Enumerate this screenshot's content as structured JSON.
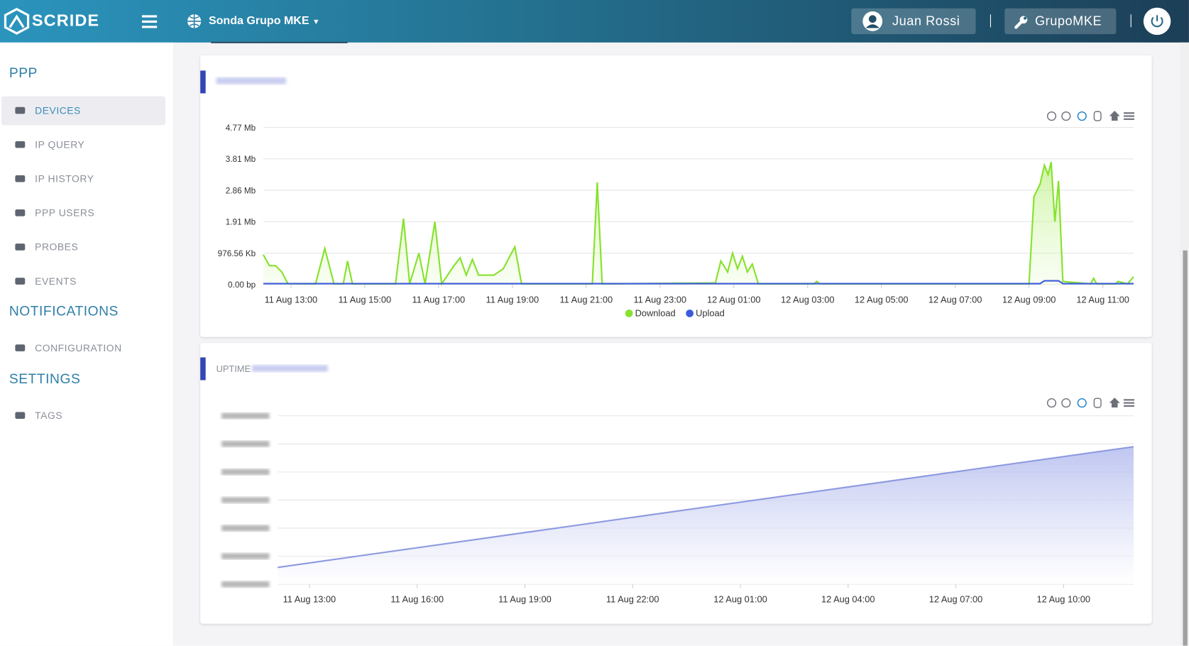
{
  "header": {
    "brand": "SCRIDE",
    "site": "Sonda Grupo MKE",
    "user": "Juan Rossi",
    "org": "GrupoMKE"
  },
  "sidebar": {
    "sections": [
      {
        "title": "PPP",
        "items": [
          "DEVICES",
          "IP QUERY",
          "IP HISTORY",
          "PPP USERS",
          "PROBES",
          "EVENTS"
        ]
      },
      {
        "title": "NOTIFICATIONS",
        "items": [
          "CONFIGURATION"
        ]
      },
      {
        "title": "SETTINGS",
        "items": [
          "TAGS"
        ]
      }
    ]
  },
  "chart_data": [
    {
      "type": "area",
      "x": [
        "11 Aug 12:15",
        "11 Aug 12:25",
        "11 Aug 12:35",
        "11 Aug 12:45",
        "11 Aug 12:55",
        "11 Aug 13:40",
        "11 Aug 13:55",
        "11 Aug 14:10",
        "11 Aug 14:25",
        "11 Aug 14:32",
        "11 Aug 14:40",
        "11 Aug 15:50",
        "11 Aug 16:03",
        "11 Aug 16:13",
        "11 Aug 16:28",
        "11 Aug 16:38",
        "11 Aug 16:54",
        "11 Aug 17:05",
        "11 Aug 17:25",
        "11 Aug 17:35",
        "11 Aug 17:45",
        "11 Aug 17:55",
        "11 Aug 18:05",
        "11 Aug 18:30",
        "11 Aug 18:45",
        "11 Aug 19:04",
        "11 Aug 19:15",
        "11 Aug 21:10",
        "11 Aug 21:18",
        "11 Aug 21:26",
        "12 Aug 00:30",
        "12 Aug 00:39",
        "12 Aug 00:50",
        "12 Aug 00:58",
        "12 Aug 01:06",
        "12 Aug 01:14",
        "12 Aug 01:22",
        "12 Aug 01:30",
        "12 Aug 01:40",
        "12 Aug 03:10",
        "12 Aug 03:15",
        "12 Aug 03:20",
        "12 Aug 09:00",
        "12 Aug 09:08",
        "12 Aug 09:18",
        "12 Aug 09:25",
        "12 Aug 09:31",
        "12 Aug 09:36",
        "12 Aug 09:42",
        "12 Aug 09:48",
        "12 Aug 09:55",
        "12 Aug 10:40",
        "12 Aug 10:45",
        "12 Aug 10:50",
        "12 Aug 11:20",
        "12 Aug 11:25",
        "12 Aug 11:40",
        "12 Aug 11:50"
      ],
      "xlim": [
        "11 Aug 12:15",
        "12 Aug 11:50"
      ],
      "xticks": [
        "11 Aug 13:00",
        "11 Aug 15:00",
        "11 Aug 17:00",
        "11 Aug 19:00",
        "11 Aug 21:00",
        "11 Aug 23:00",
        "12 Aug 01:00",
        "12 Aug 03:00",
        "12 Aug 05:00",
        "12 Aug 07:00",
        "12 Aug 09:00",
        "12 Aug 11:00"
      ],
      "ylim": [
        0,
        5000000
      ],
      "yticks": [
        {
          "value": 0,
          "label": "0.00 bp"
        },
        {
          "value": 1000000,
          "label": "976.56 Kb"
        },
        {
          "value": 2000000,
          "label": "1.91 Mb"
        },
        {
          "value": 3000000,
          "label": "2.86 Mb"
        },
        {
          "value": 4000000,
          "label": "3.81 Mb"
        },
        {
          "value": 5000000,
          "label": "4.77 Mb"
        }
      ],
      "grid": true,
      "legend": "bottom",
      "series": [
        {
          "name": "Download",
          "color": "#86e22c",
          "values": [
            950000,
            600000,
            600000,
            400000,
            30000,
            20000,
            1150000,
            20000,
            20000,
            750000,
            20000,
            20000,
            2100000,
            20000,
            1000000,
            20000,
            2000000,
            20000,
            600000,
            850000,
            300000,
            800000,
            300000,
            300000,
            500000,
            1200000,
            20000,
            20000,
            3250000,
            20000,
            50000,
            750000,
            400000,
            1000000,
            500000,
            900000,
            400000,
            650000,
            20000,
            20000,
            100000,
            20000,
            20000,
            2800000,
            3200000,
            3800000,
            3500000,
            3900000,
            2000000,
            3300000,
            100000,
            20000,
            200000,
            20000,
            20000,
            100000,
            20000,
            250000
          ]
        },
        {
          "name": "Upload",
          "color": "#3b5bdb",
          "values": [
            30000,
            30000,
            30000,
            30000,
            30000,
            30000,
            30000,
            30000,
            30000,
            30000,
            30000,
            30000,
            30000,
            30000,
            30000,
            30000,
            30000,
            30000,
            30000,
            30000,
            30000,
            30000,
            30000,
            30000,
            30000,
            30000,
            30000,
            30000,
            30000,
            30000,
            30000,
            30000,
            30000,
            30000,
            30000,
            30000,
            30000,
            30000,
            30000,
            30000,
            30000,
            30000,
            30000,
            30000,
            30000,
            120000,
            120000,
            120000,
            120000,
            120000,
            30000,
            30000,
            30000,
            30000,
            30000,
            30000,
            30000,
            30000
          ]
        }
      ]
    },
    {
      "type": "area",
      "title": "UPTIME",
      "x": [
        "11 Aug 12:07",
        "12 Aug 11:57"
      ],
      "xlim": [
        "11 Aug 12:07",
        "12 Aug 11:57"
      ],
      "xticks": [
        "11 Aug 13:00",
        "11 Aug 16:00",
        "11 Aug 19:00",
        "11 Aug 22:00",
        "12 Aug 01:00",
        "12 Aug 04:00",
        "12 Aug 07:00",
        "12 Aug 10:00"
      ],
      "ylim": [
        0,
        6
      ],
      "yticks": [
        0,
        1,
        2,
        3,
        4,
        5,
        6
      ],
      "grid": true,
      "series": [
        {
          "color": "#8e9ae0",
          "values": [
            0.6,
            4.9
          ]
        }
      ]
    }
  ]
}
